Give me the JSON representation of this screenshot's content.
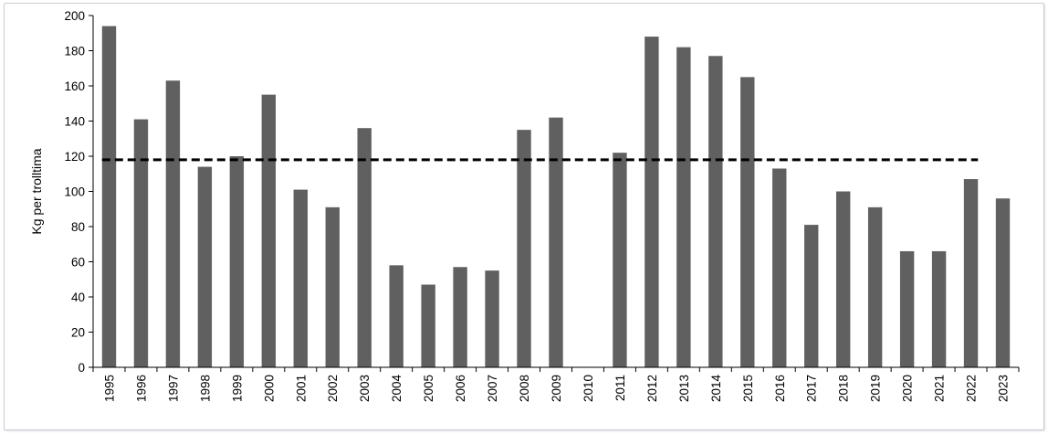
{
  "chart_data": {
    "type": "bar",
    "title": "",
    "xlabel": "",
    "ylabel": "Kg per trolltima",
    "ylim": [
      0,
      200
    ],
    "yticks": [
      0,
      20,
      40,
      60,
      80,
      100,
      120,
      140,
      160,
      180,
      200
    ],
    "categories": [
      "1995",
      "1996",
      "1997",
      "1998",
      "1999",
      "2000",
      "2001",
      "2002",
      "2003",
      "2004",
      "2005",
      "2006",
      "2007",
      "2008",
      "2009",
      "2010",
      "2011",
      "2012",
      "2013",
      "2014",
      "2015",
      "2016",
      "2017",
      "2018",
      "2019",
      "2020",
      "2021",
      "2022",
      "2023"
    ],
    "values": [
      194,
      141,
      163,
      114,
      120,
      155,
      101,
      91,
      136,
      58,
      47,
      57,
      55,
      135,
      142,
      0,
      122,
      188,
      182,
      177,
      165,
      113,
      81,
      100,
      91,
      66,
      66,
      107,
      96
    ],
    "reference_line": {
      "value": 118,
      "style": "dashed"
    },
    "grid": false,
    "legend": "none",
    "bar_color": "#606060",
    "reference_line_color": "#000000"
  }
}
